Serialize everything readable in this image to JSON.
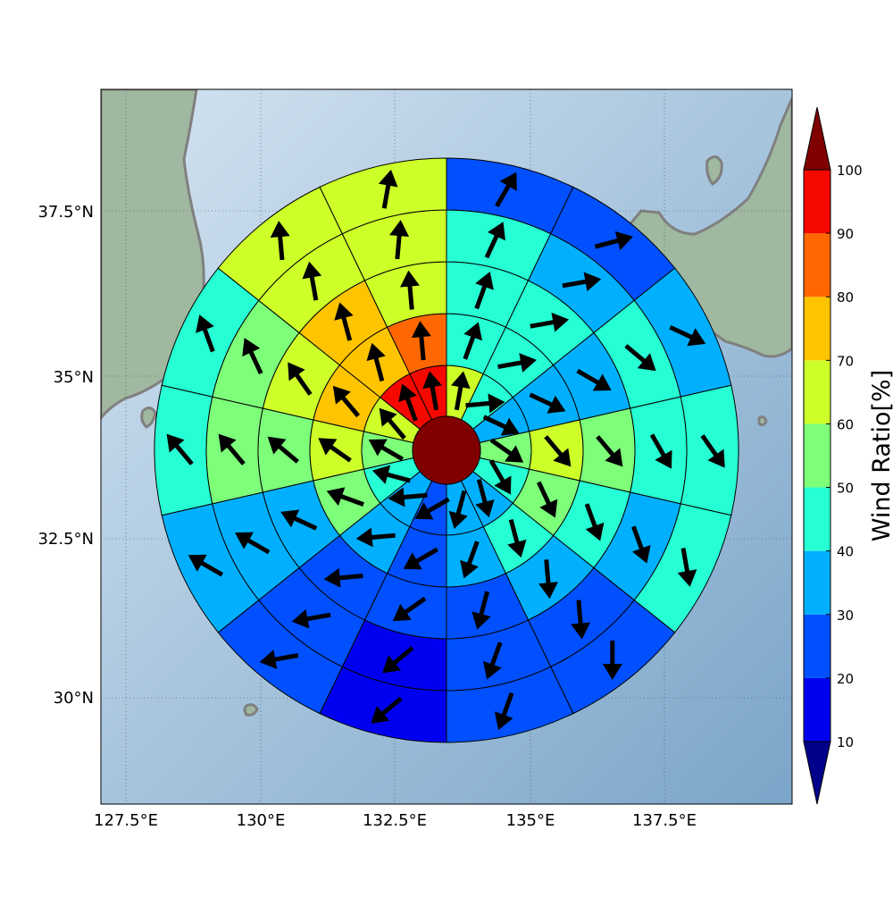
{
  "map": {
    "lon_ticks": [
      "127.5°E",
      "130°E",
      "132.5°E",
      "135°E",
      "137.5°E"
    ],
    "lat_ticks": [
      "37.5°N",
      "35°N",
      "32.5°N",
      "30°N"
    ],
    "colors": {
      "sea_light": "#d4e4f1",
      "sea_dark": "#7ba5c9",
      "land": "#9fb89f",
      "coastline": "#808080",
      "gridline": "#3a4a5a"
    }
  },
  "polar_grid": {
    "center_value": 100,
    "rings": [
      {
        "ratio": [
          60,
          40,
          30,
          50,
          40,
          30,
          30,
          20,
          30,
          40,
          50,
          60,
          90,
          90
        ]
      },
      {
        "ratio": [
          40,
          40,
          30,
          60,
          50,
          40,
          30,
          20,
          30,
          50,
          60,
          70,
          70,
          80
        ]
      },
      {
        "ratio": [
          40,
          40,
          30,
          50,
          40,
          30,
          20,
          20,
          20,
          30,
          50,
          60,
          70,
          60
        ]
      },
      {
        "ratio": [
          40,
          30,
          40,
          40,
          30,
          20,
          20,
          10,
          20,
          30,
          50,
          50,
          60,
          60
        ]
      },
      {
        "ratio": [
          20,
          20,
          30,
          40,
          40,
          20,
          20,
          10,
          20,
          30,
          40,
          40,
          60,
          60
        ]
      }
    ],
    "wind_direction_deg": [
      [
        10,
        85,
        115,
        125,
        150,
        165,
        195,
        240,
        265,
        285,
        300,
        320,
        340,
        350
      ],
      [
        20,
        80,
        115,
        140,
        155,
        165,
        200,
        240,
        265,
        290,
        305,
        320,
        345,
        355
      ],
      [
        20,
        80,
        120,
        140,
        160,
        175,
        195,
        235,
        265,
        295,
        310,
        325,
        345,
        355
      ],
      [
        25,
        80,
        130,
        150,
        160,
        175,
        200,
        230,
        260,
        300,
        320,
        335,
        350,
        5
      ],
      [
        30,
        75,
        115,
        145,
        170,
        180,
        200,
        230,
        260,
        300,
        320,
        340,
        355,
        10
      ]
    ]
  },
  "colorbar": {
    "label": "Wind Ratio[%]",
    "ticks": [
      "10",
      "20",
      "30",
      "40",
      "50",
      "60",
      "70",
      "80",
      "90",
      "100"
    ],
    "bins": [
      {
        "from": 10,
        "to": 20,
        "color": "#0000f0"
      },
      {
        "from": 20,
        "to": 30,
        "color": "#0050ff"
      },
      {
        "from": 30,
        "to": 40,
        "color": "#00b0ff"
      },
      {
        "from": 40,
        "to": 50,
        "color": "#26ffd4"
      },
      {
        "from": 50,
        "to": 60,
        "color": "#7dff7a"
      },
      {
        "from": 60,
        "to": 70,
        "color": "#cdff29"
      },
      {
        "from": 70,
        "to": 80,
        "color": "#ffc400"
      },
      {
        "from": 80,
        "to": 90,
        "color": "#ff6800"
      },
      {
        "from": 90,
        "to": 100,
        "color": "#f40800"
      }
    ],
    "under_color": "#00008b",
    "over_color": "#800000"
  }
}
